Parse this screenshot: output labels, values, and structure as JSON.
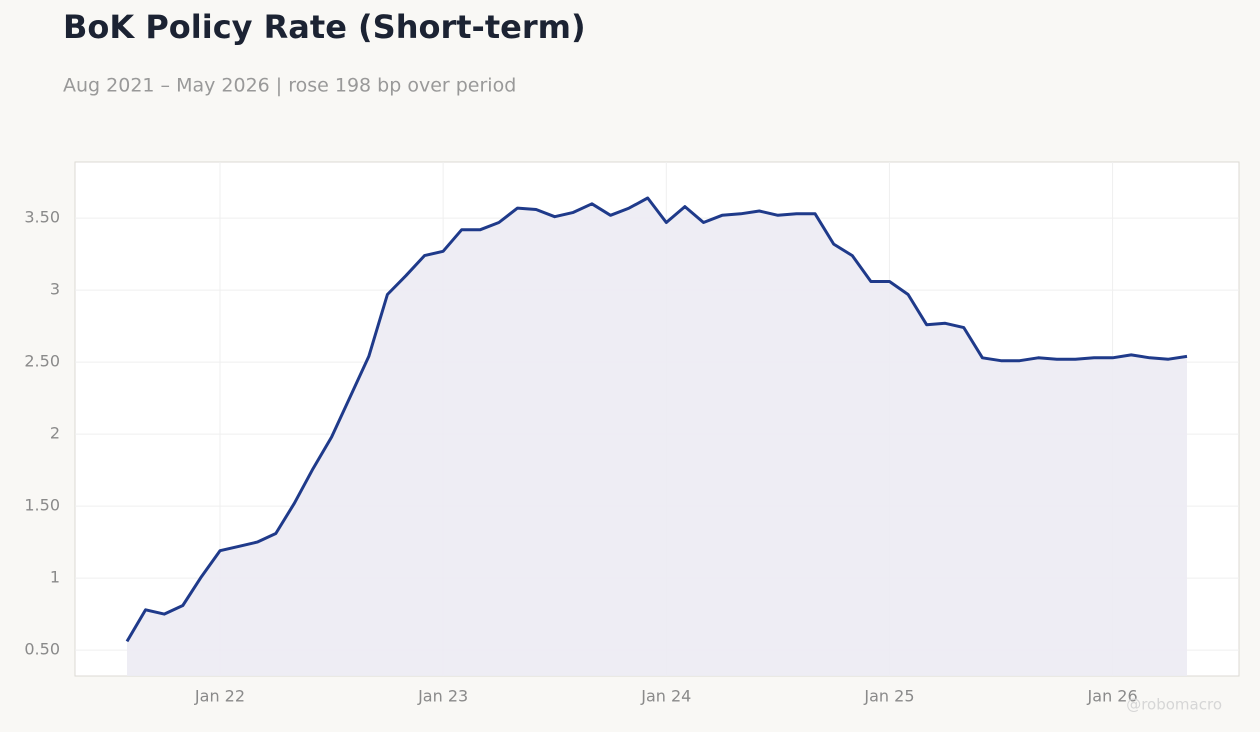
{
  "chart_data": {
    "type": "area",
    "title": "BoK Policy Rate (Short-term)",
    "subtitle": "Aug 2021 – May 2026 | rose 198 bp over period",
    "watermark": "@robomacro",
    "x": [
      "2021-08",
      "2021-09",
      "2021-10",
      "2021-11",
      "2021-12",
      "2022-01",
      "2022-02",
      "2022-03",
      "2022-04",
      "2022-05",
      "2022-06",
      "2022-07",
      "2022-08",
      "2022-09",
      "2022-10",
      "2022-11",
      "2022-12",
      "2023-01",
      "2023-02",
      "2023-03",
      "2023-04",
      "2023-05",
      "2023-06",
      "2023-07",
      "2023-08",
      "2023-09",
      "2023-10",
      "2023-11",
      "2023-12",
      "2024-01",
      "2024-02",
      "2024-03",
      "2024-04",
      "2024-05",
      "2024-06",
      "2024-07",
      "2024-08",
      "2024-09",
      "2024-10",
      "2024-11",
      "2024-12",
      "2025-01",
      "2025-02",
      "2025-03",
      "2025-04",
      "2025-05",
      "2025-06",
      "2025-07",
      "2025-08",
      "2025-09",
      "2025-10",
      "2025-11",
      "2025-12",
      "2026-01",
      "2026-02",
      "2026-03",
      "2026-04",
      "2026-05"
    ],
    "series": [
      {
        "name": "BoK Policy Rate",
        "color": "#1f3a8a",
        "fill": "#ecebf3",
        "values": [
          0.56,
          0.78,
          0.75,
          0.81,
          1.01,
          1.19,
          1.22,
          1.25,
          1.31,
          1.52,
          1.76,
          1.98,
          2.26,
          2.54,
          2.97,
          3.1,
          3.24,
          3.27,
          3.42,
          3.42,
          3.47,
          3.57,
          3.56,
          3.51,
          3.54,
          3.6,
          3.52,
          3.57,
          3.64,
          3.47,
          3.58,
          3.47,
          3.52,
          3.53,
          3.55,
          3.52,
          3.53,
          3.53,
          3.32,
          3.24,
          3.06,
          3.06,
          2.97,
          2.76,
          2.77,
          2.74,
          2.53,
          2.51,
          2.51,
          2.53,
          2.52,
          2.52,
          2.53,
          2.53,
          2.55,
          2.53,
          2.52,
          2.54
        ]
      }
    ],
    "ylim": [
      0.32,
      3.89
    ],
    "yticks": [
      {
        "value": 0.5,
        "label": "0.50"
      },
      1,
      {
        "value": 1.5,
        "label": "1.50"
      },
      2,
      {
        "value": 2.5,
        "label": "2.50"
      },
      3,
      {
        "value": 3.5,
        "label": "3.50"
      }
    ],
    "xticks": [
      {
        "value": "2022-01",
        "label": "Jan 22"
      },
      {
        "value": "2023-01",
        "label": "Jan 23"
      },
      {
        "value": "2024-01",
        "label": "Jan 24"
      },
      {
        "value": "2025-01",
        "label": "Jan 25"
      },
      {
        "value": "2026-01",
        "label": "Jan 26"
      }
    ],
    "grid": true
  }
}
